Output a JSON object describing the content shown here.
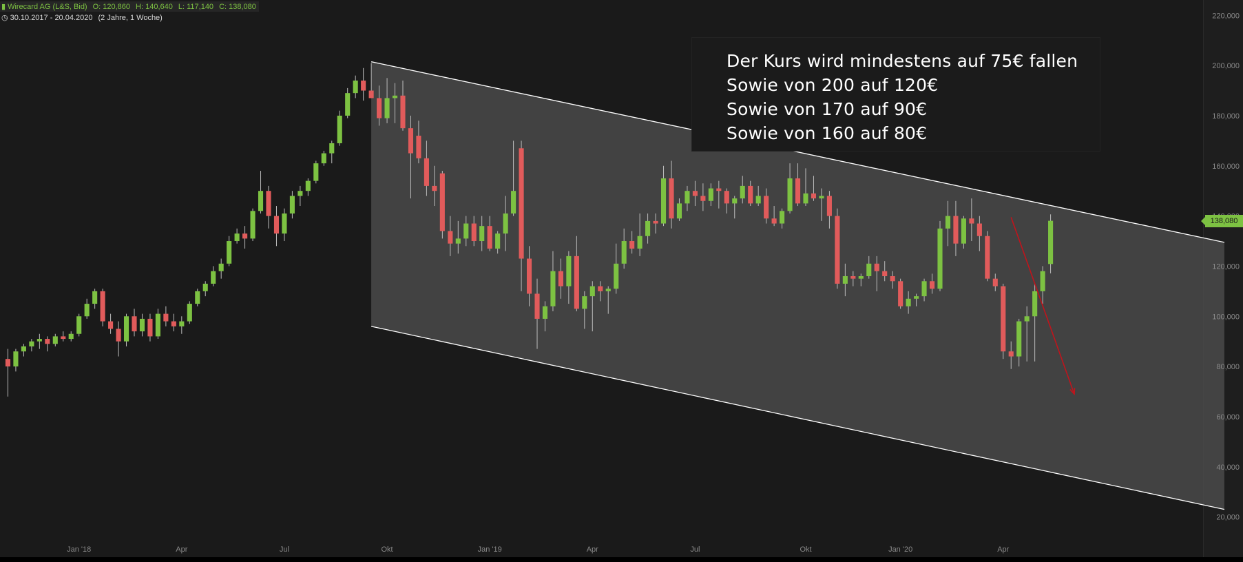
{
  "header": {
    "instrument": "Wirecard AG (L&S, Bid)",
    "open": "O: 120,860",
    "high": "H: 140,640",
    "low": "L: 117,140",
    "close": "C: 138,080",
    "range": "30.10.2017 - 20.04.2020",
    "interval": "(2 Jahre, 1 Woche)"
  },
  "annotation": {
    "lines": [
      "Der Kurs wird mindestens auf 75€ fallen",
      "Sowie von 200 auf 120€",
      "Sowie von 170 auf 90€",
      "Sowie von 160 auf 80€"
    ]
  },
  "last_price_badge": "138,080",
  "colors": {
    "background": "#1a1a1a",
    "up": "#7dc242",
    "down": "#e15b5b",
    "channel_fill": "#4a4a4a",
    "channel_line": "#ffffff",
    "arrow": "#c0141c",
    "axis_text": "#8a8a8a"
  },
  "chart_data": {
    "type": "candlestick",
    "title": "Wirecard AG (L&S, Bid)",
    "xlabel": "",
    "ylabel": "",
    "ylim": [
      10000,
      222000
    ],
    "y_ticks": [
      "220,000",
      "200,000",
      "180,000",
      "160,000",
      "140,000",
      "120,000",
      "100,000",
      "80,000",
      "60,000",
      "40,000",
      "20,000"
    ],
    "y_tick_values": [
      220000,
      200000,
      180000,
      160000,
      140000,
      120000,
      100000,
      80000,
      60000,
      40000,
      20000
    ],
    "x_ticks": [
      {
        "label": "Jan '18",
        "week": 9
      },
      {
        "label": "Apr",
        "week": 22
      },
      {
        "label": "Jul",
        "week": 35
      },
      {
        "label": "Okt",
        "week": 48
      },
      {
        "label": "Jan '19",
        "week": 61
      },
      {
        "label": "Apr",
        "week": 74
      },
      {
        "label": "Jul",
        "week": 87
      },
      {
        "label": "Okt",
        "week": 101
      },
      {
        "label": "Jan '20",
        "week": 113
      },
      {
        "label": "Apr",
        "week": 126
      }
    ],
    "weeks_range": [
      -1,
      152
    ],
    "grid": false,
    "candles": [
      [
        83000,
        87000,
        68000,
        80000
      ],
      [
        80000,
        87000,
        78000,
        86000
      ],
      [
        86000,
        89000,
        84000,
        88000
      ],
      [
        88000,
        91000,
        86000,
        90000
      ],
      [
        90000,
        93000,
        87000,
        91000
      ],
      [
        91000,
        92000,
        86000,
        89000
      ],
      [
        89000,
        93000,
        88000,
        92000
      ],
      [
        92000,
        94000,
        90000,
        91000
      ],
      [
        91000,
        94000,
        90000,
        93000
      ],
      [
        93000,
        101000,
        92000,
        100000
      ],
      [
        100000,
        107000,
        99000,
        105000
      ],
      [
        105000,
        111000,
        103000,
        110000
      ],
      [
        110000,
        111000,
        96000,
        98000
      ],
      [
        98000,
        101000,
        93000,
        95000
      ],
      [
        95000,
        98000,
        84000,
        90000
      ],
      [
        90000,
        101000,
        88000,
        100000
      ],
      [
        100000,
        103000,
        92000,
        94000
      ],
      [
        94000,
        101000,
        92000,
        99000
      ],
      [
        99000,
        101000,
        90000,
        92000
      ],
      [
        92000,
        103000,
        91000,
        101000
      ],
      [
        101000,
        104000,
        96000,
        98000
      ],
      [
        98000,
        101000,
        94000,
        96000
      ],
      [
        96000,
        100000,
        93000,
        98000
      ],
      [
        98000,
        106000,
        97000,
        105000
      ],
      [
        105000,
        111000,
        104000,
        110000
      ],
      [
        110000,
        114000,
        108000,
        113000
      ],
      [
        113000,
        120000,
        112000,
        118000
      ],
      [
        118000,
        123000,
        115000,
        121000
      ],
      [
        121000,
        132000,
        120000,
        130000
      ],
      [
        130000,
        135000,
        129000,
        133000
      ],
      [
        133000,
        136000,
        127000,
        131000
      ],
      [
        131000,
        143000,
        130000,
        142000
      ],
      [
        142000,
        158000,
        141000,
        150000
      ],
      [
        150000,
        152000,
        135000,
        140000
      ],
      [
        140000,
        144000,
        128000,
        133000
      ],
      [
        133000,
        143000,
        130000,
        141000
      ],
      [
        141000,
        150000,
        139000,
        148000
      ],
      [
        148000,
        152000,
        144000,
        150000
      ],
      [
        150000,
        155000,
        148000,
        154000
      ],
      [
        154000,
        162000,
        153000,
        161000
      ],
      [
        161000,
        166000,
        160000,
        165000
      ],
      [
        165000,
        170000,
        161000,
        169000
      ],
      [
        169000,
        182000,
        168000,
        180000
      ],
      [
        180000,
        191000,
        179000,
        189000
      ],
      [
        189000,
        196000,
        187000,
        194000
      ],
      [
        194000,
        199000,
        186000,
        190000
      ],
      [
        190000,
        201000,
        187000,
        187000
      ],
      [
        187000,
        192000,
        176000,
        179000
      ],
      [
        179000,
        195000,
        177000,
        187000
      ],
      [
        187000,
        193000,
        177000,
        188000
      ],
      [
        188000,
        194000,
        174000,
        175000
      ],
      [
        175000,
        180000,
        147000,
        165000
      ],
      [
        172000,
        178000,
        161000,
        163000
      ],
      [
        163000,
        170000,
        148000,
        152000
      ],
      [
        152000,
        160000,
        144000,
        150000
      ],
      [
        157000,
        158000,
        131000,
        134000
      ],
      [
        134000,
        140000,
        124000,
        129000
      ],
      [
        129000,
        138000,
        125000,
        131000
      ],
      [
        131000,
        140000,
        128000,
        137000
      ],
      [
        137000,
        140000,
        128000,
        130000
      ],
      [
        130000,
        140000,
        126000,
        136000
      ],
      [
        136000,
        140000,
        126000,
        127000
      ],
      [
        127000,
        134000,
        125000,
        133000
      ],
      [
        133000,
        148000,
        126000,
        141000
      ],
      [
        141000,
        170000,
        140000,
        150000
      ],
      [
        167000,
        170000,
        110000,
        123000
      ],
      [
        123000,
        128000,
        104000,
        109000
      ],
      [
        109000,
        115000,
        87000,
        99000
      ],
      [
        99000,
        106000,
        94000,
        104000
      ],
      [
        104000,
        126000,
        102000,
        118000
      ],
      [
        118000,
        123000,
        107000,
        112000
      ],
      [
        112000,
        126000,
        105000,
        124000
      ],
      [
        124000,
        132000,
        102000,
        103000
      ],
      [
        103000,
        110000,
        95000,
        108000
      ],
      [
        108000,
        114000,
        94000,
        112000
      ],
      [
        112000,
        114000,
        106000,
        110000
      ],
      [
        110000,
        112000,
        101000,
        111000
      ],
      [
        111000,
        129000,
        109000,
        121000
      ],
      [
        121000,
        135000,
        119000,
        130000
      ],
      [
        130000,
        134000,
        125000,
        127000
      ],
      [
        127000,
        141000,
        124000,
        132000
      ],
      [
        132000,
        141000,
        129000,
        138000
      ],
      [
        138000,
        141000,
        133000,
        137000
      ],
      [
        137000,
        160000,
        136000,
        155000
      ],
      [
        155000,
        162000,
        135000,
        139000
      ],
      [
        139000,
        147000,
        138000,
        145000
      ],
      [
        145000,
        152000,
        142000,
        150000
      ],
      [
        150000,
        154000,
        144000,
        148000
      ],
      [
        148000,
        153000,
        142000,
        146000
      ],
      [
        146000,
        153000,
        144000,
        151000
      ],
      [
        151000,
        154000,
        143000,
        150000
      ],
      [
        150000,
        151000,
        141000,
        145000
      ],
      [
        145000,
        148000,
        139000,
        147000
      ],
      [
        147000,
        156000,
        145000,
        152000
      ],
      [
        152000,
        154000,
        144000,
        145000
      ],
      [
        145000,
        152000,
        144000,
        148000
      ],
      [
        148000,
        151000,
        137000,
        139000
      ],
      [
        139000,
        144000,
        136000,
        137000
      ],
      [
        137000,
        143000,
        135000,
        142000
      ],
      [
        142000,
        161000,
        141000,
        155000
      ],
      [
        155000,
        161000,
        144000,
        145000
      ],
      [
        145000,
        159000,
        144000,
        149000
      ],
      [
        149000,
        156000,
        146000,
        147000
      ],
      [
        147000,
        151000,
        138000,
        148000
      ],
      [
        148000,
        150000,
        135000,
        140000
      ],
      [
        140000,
        143000,
        111000,
        113000
      ],
      [
        113000,
        121000,
        108000,
        116000
      ],
      [
        116000,
        118000,
        112000,
        115000
      ],
      [
        115000,
        117000,
        112000,
        116000
      ],
      [
        116000,
        124000,
        115000,
        121000
      ],
      [
        121000,
        124000,
        110000,
        118000
      ],
      [
        118000,
        122000,
        114000,
        116000
      ],
      [
        116000,
        118000,
        111000,
        114000
      ],
      [
        114000,
        115000,
        103000,
        104000
      ],
      [
        104000,
        110000,
        101000,
        107000
      ],
      [
        107000,
        109000,
        104000,
        108000
      ],
      [
        108000,
        115000,
        106000,
        114000
      ],
      [
        114000,
        117000,
        109000,
        111000
      ],
      [
        111000,
        138000,
        110000,
        135000
      ],
      [
        135000,
        146000,
        128000,
        140000
      ],
      [
        140000,
        146000,
        124000,
        129000
      ],
      [
        129000,
        140000,
        127000,
        139000
      ],
      [
        139000,
        147000,
        130000,
        137000
      ],
      [
        137000,
        140000,
        126000,
        132000
      ],
      [
        132000,
        134000,
        114000,
        115000
      ],
      [
        115000,
        117000,
        110000,
        112000
      ],
      [
        112000,
        113000,
        83000,
        86000
      ],
      [
        86000,
        90000,
        79000,
        84000
      ],
      [
        84000,
        99000,
        80000,
        98000
      ],
      [
        98000,
        104000,
        82000,
        100000
      ],
      [
        100000,
        113000,
        82000,
        110000
      ],
      [
        110000,
        120000,
        105000,
        118000
      ],
      [
        120860,
        140640,
        117140,
        138080
      ]
    ],
    "channel": {
      "upper": [
        {
          "week": 46,
          "price": 201500
        },
        {
          "week": 154,
          "price": 129500
        }
      ],
      "lower": [
        {
          "week": 46,
          "price": 96000
        },
        {
          "week": 154,
          "price": 23000
        }
      ]
    },
    "forecast_arrow": {
      "from": {
        "week": 127,
        "price": 139500
      },
      "to": {
        "week": 135,
        "price": 69000
      }
    },
    "last_price": 138080
  }
}
